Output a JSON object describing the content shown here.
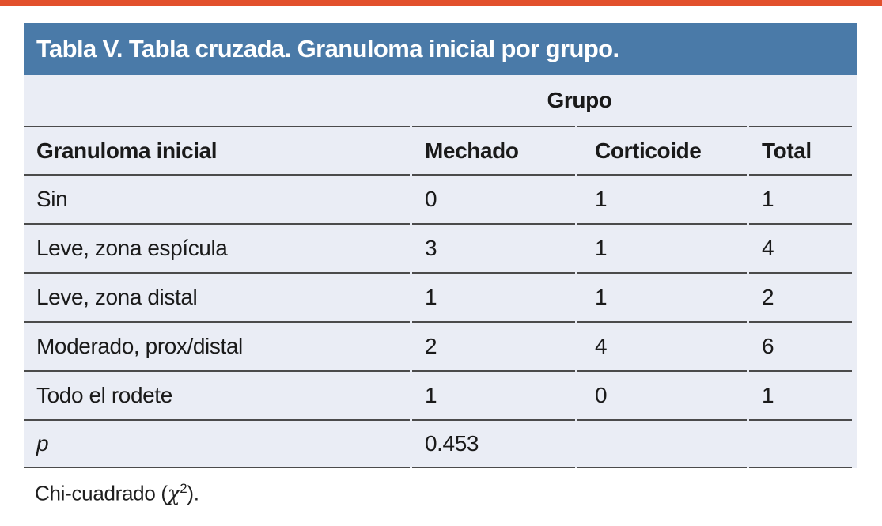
{
  "colors": {
    "top_bar": "#e2502c",
    "title_bg": "#4a7aa8",
    "title_text": "#ffffff",
    "table_bg": "#eaedf5",
    "divider": "#4b4b4b",
    "text": "#1a1a1a"
  },
  "title": "Tabla V. Tabla cruzada. Granuloma inicial por grupo.",
  "table": {
    "group_header": "Grupo",
    "columns": [
      "Granuloma inicial",
      "Mechado",
      "Corticoide",
      "Total"
    ],
    "rows": [
      {
        "label": "Sin",
        "values": [
          "0",
          "1",
          "1"
        ]
      },
      {
        "label": "Leve, zona espícula",
        "values": [
          "3",
          "1",
          "4"
        ]
      },
      {
        "label": "Leve, zona distal",
        "values": [
          "1",
          "1",
          "2"
        ]
      },
      {
        "label": "Moderado, prox/distal",
        "values": [
          "2",
          "4",
          "6"
        ]
      },
      {
        "label": "Todo el rodete",
        "values": [
          "1",
          "0",
          "1"
        ]
      }
    ],
    "p_row": {
      "label": "p",
      "value": "0.453"
    }
  },
  "footnote": {
    "prefix": "Chi-cuadrado (",
    "symbol": "χ",
    "superscript": "2",
    "suffix": ")."
  }
}
